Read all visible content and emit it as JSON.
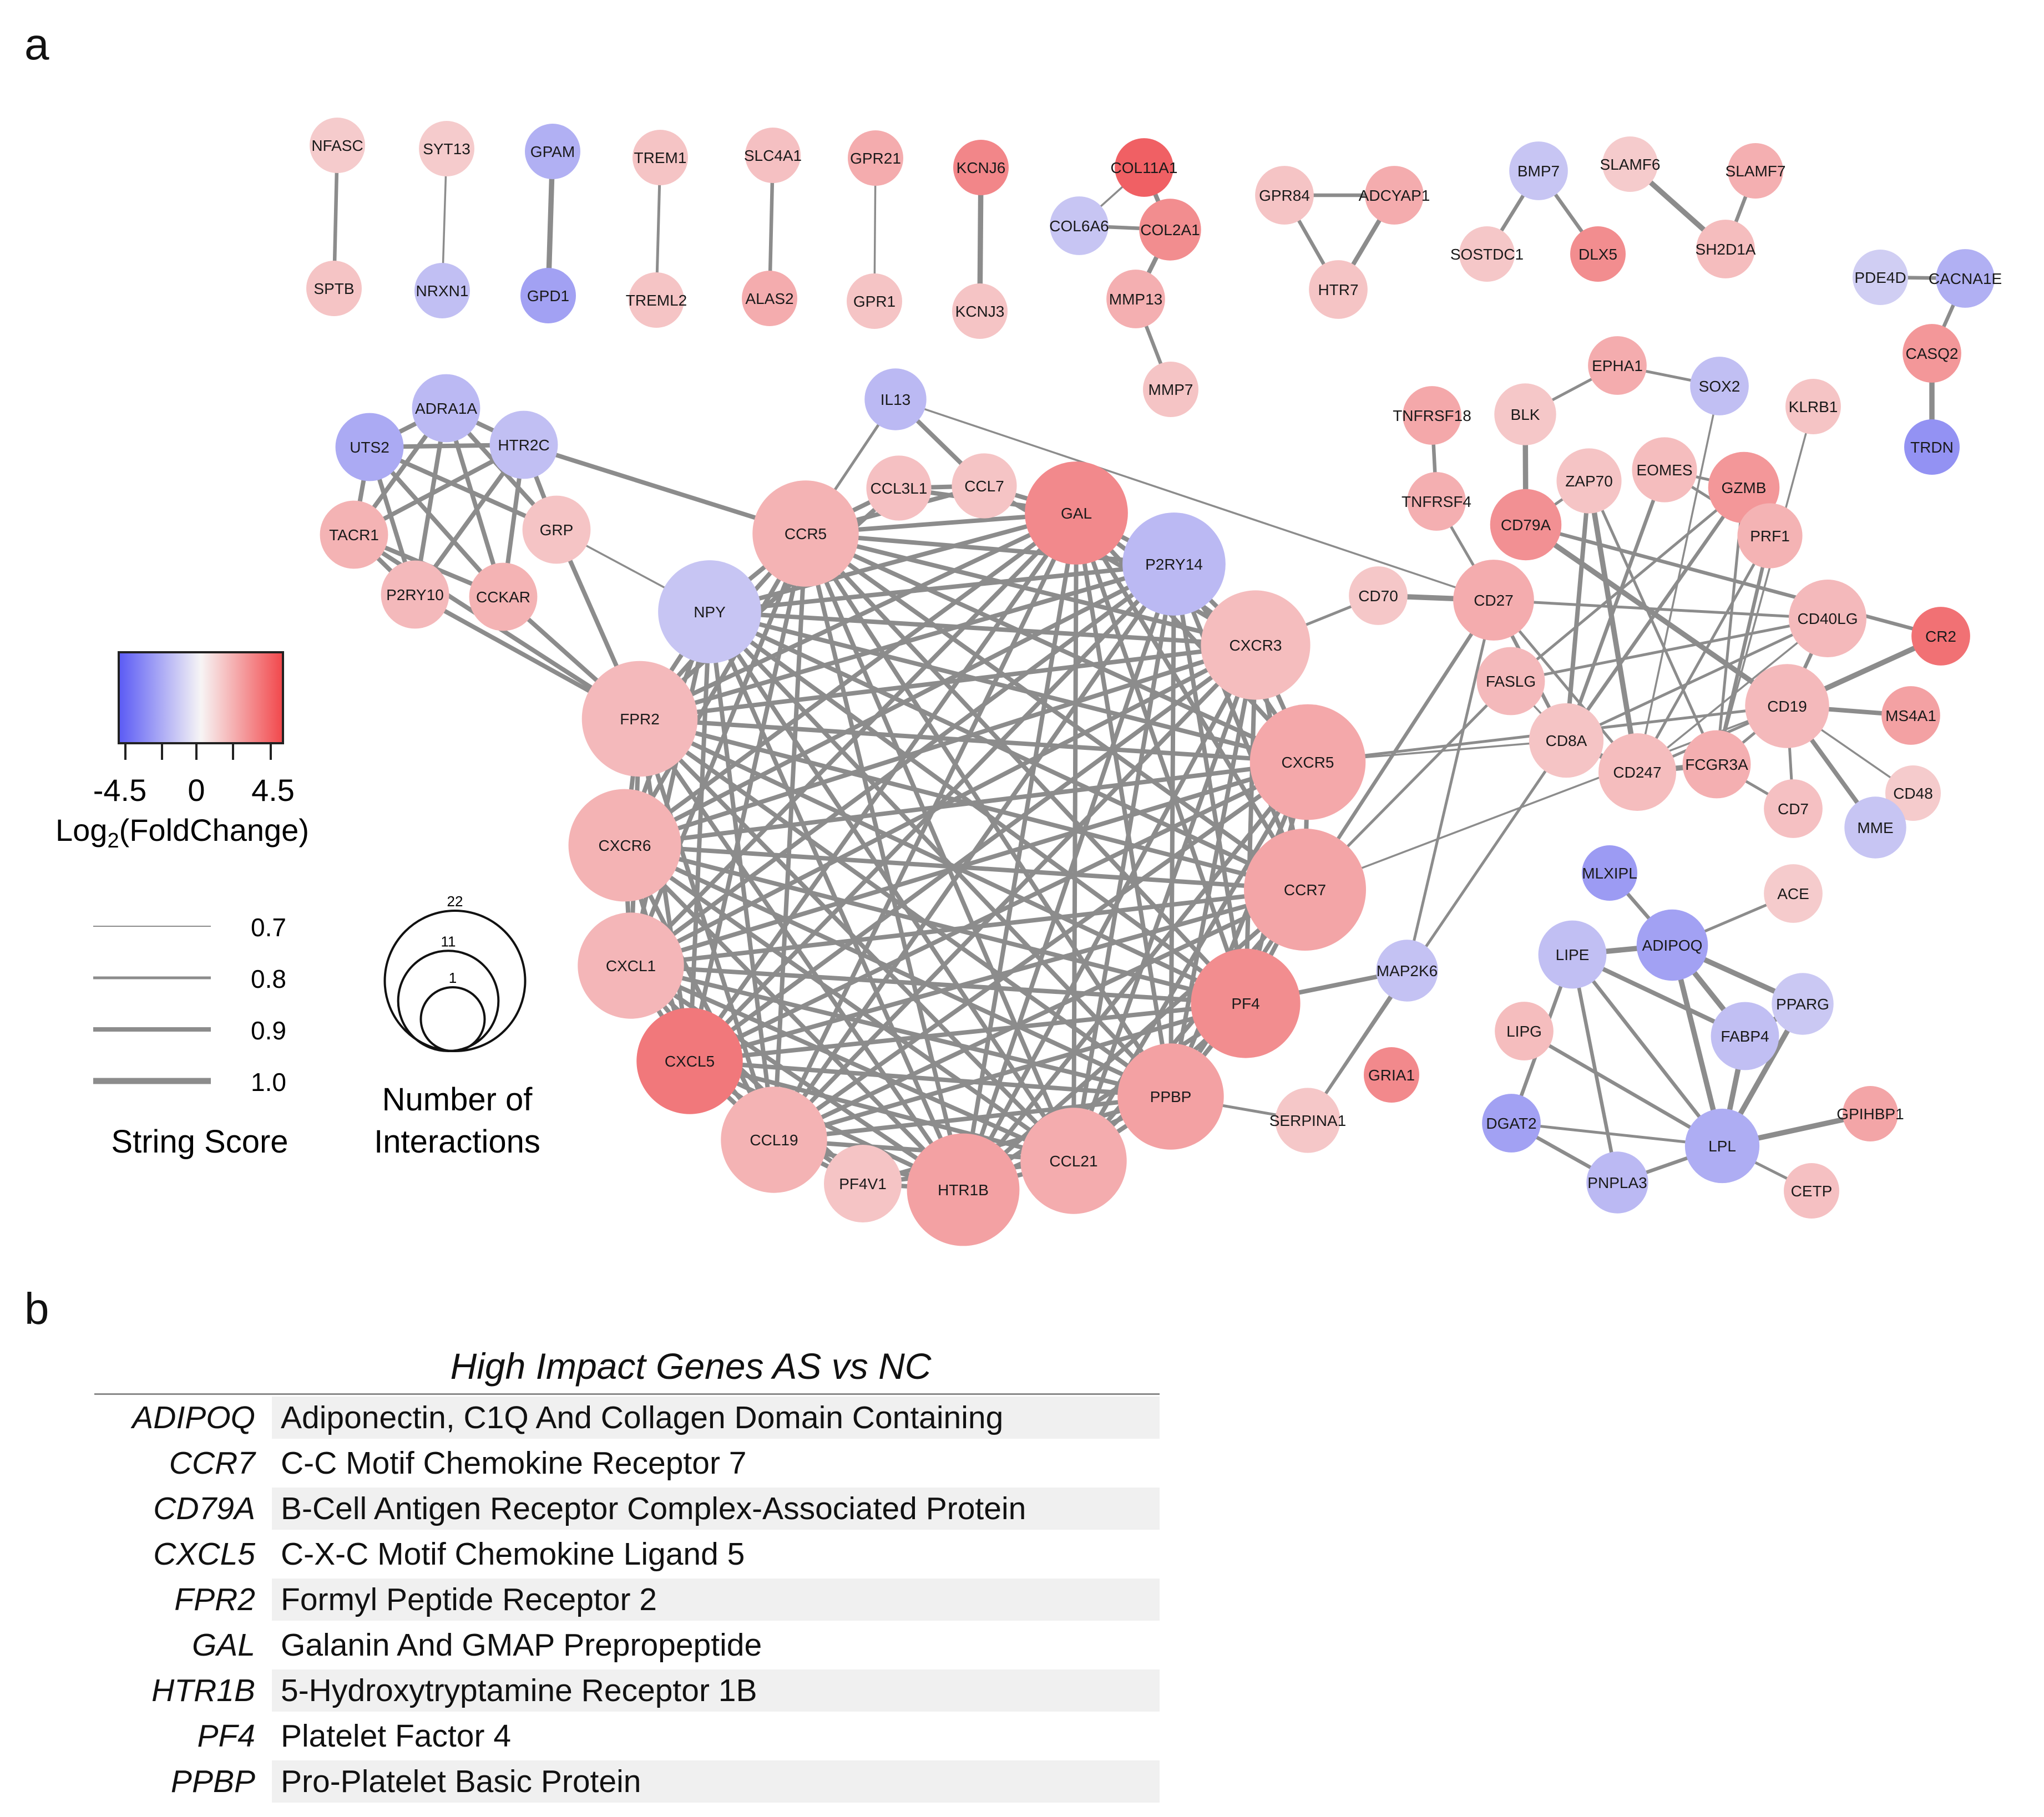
{
  "panel_labels": {
    "a": "a",
    "b": "b"
  },
  "colors": {
    "edge": "#8c8c8c",
    "low": "#6f6ff2",
    "mid": "#f7f4f4",
    "high": "#f0595d",
    "node_text": "#1a1a1a"
  },
  "legend": {
    "colorbar": {
      "min": "-4.5",
      "mid": "0",
      "max": "4.5",
      "title_main": "Log",
      "title_sub": "2",
      "title_rest": "(FoldChange)"
    },
    "string_score": {
      "title": "String Score",
      "items": [
        {
          "label": "0.7",
          "score": 0.7
        },
        {
          "label": "0.8",
          "score": 0.8
        },
        {
          "label": "0.9",
          "score": 0.9
        },
        {
          "label": "1.0",
          "score": 1.0
        }
      ]
    },
    "interactions": {
      "title_line1": "Number of",
      "title_line2": "Interactions",
      "items": [
        {
          "label": "22",
          "count": 22
        },
        {
          "label": "11",
          "count": 11
        },
        {
          "label": "1",
          "count": 1
        }
      ]
    }
  },
  "network": {
    "nodes": [
      {
        "id": "NFASC",
        "fc": 1.2,
        "deg": 1
      },
      {
        "id": "SPTB",
        "fc": 1.4,
        "deg": 1
      },
      {
        "id": "SYT13",
        "fc": 1.2,
        "deg": 1
      },
      {
        "id": "NRXN1",
        "fc": -1.8,
        "deg": 1
      },
      {
        "id": "GPAM",
        "fc": -2.3,
        "deg": 1
      },
      {
        "id": "GPD1",
        "fc": -2.8,
        "deg": 1
      },
      {
        "id": "TREM1",
        "fc": 1.4,
        "deg": 1
      },
      {
        "id": "TREML2",
        "fc": 1.4,
        "deg": 1
      },
      {
        "id": "SLC4A1",
        "fc": 1.5,
        "deg": 1
      },
      {
        "id": "ALAS2",
        "fc": 2.1,
        "deg": 1
      },
      {
        "id": "GPR21",
        "fc": 2.1,
        "deg": 1
      },
      {
        "id": "GPR1",
        "fc": 1.4,
        "deg": 1
      },
      {
        "id": "KCNJ6",
        "fc": 3.2,
        "deg": 1
      },
      {
        "id": "KCNJ3",
        "fc": 1.4,
        "deg": 1
      },
      {
        "id": "COL11A1",
        "fc": 4.3,
        "deg": 2
      },
      {
        "id": "COL6A6",
        "fc": -1.6,
        "deg": 2
      },
      {
        "id": "COL2A1",
        "fc": 3.0,
        "deg": 3
      },
      {
        "id": "MMP13",
        "fc": 2.0,
        "deg": 2
      },
      {
        "id": "MMP7",
        "fc": 1.4,
        "deg": 1
      },
      {
        "id": "GPR84",
        "fc": 1.4,
        "deg": 2
      },
      {
        "id": "ADCYAP1",
        "fc": 2.1,
        "deg": 2
      },
      {
        "id": "HTR7",
        "fc": 1.4,
        "deg": 2
      },
      {
        "id": "BMP7",
        "fc": -1.6,
        "deg": 2
      },
      {
        "id": "SOSTDC1",
        "fc": 1.3,
        "deg": 1
      },
      {
        "id": "DLX5",
        "fc": 3.0,
        "deg": 1
      },
      {
        "id": "SLAMF6",
        "fc": 1.2,
        "deg": 1
      },
      {
        "id": "SLAMF7",
        "fc": 2.0,
        "deg": 1
      },
      {
        "id": "SH2D1A",
        "fc": 1.6,
        "deg": 2
      },
      {
        "id": "PDE4D",
        "fc": -1.3,
        "deg": 1
      },
      {
        "id": "CACNA1E",
        "fc": -2.3,
        "deg": 2
      },
      {
        "id": "CASQ2",
        "fc": 2.7,
        "deg": 2
      },
      {
        "id": "TRDN",
        "fc": -3.3,
        "deg": 1
      },
      {
        "id": "UTS2",
        "fc": -2.5,
        "deg": 5
      },
      {
        "id": "ADRA1A",
        "fc": -2.0,
        "deg": 5
      },
      {
        "id": "HTR2C",
        "fc": -1.8,
        "deg": 5
      },
      {
        "id": "TACR1",
        "fc": 1.9,
        "deg": 5
      },
      {
        "id": "GRP",
        "fc": 1.4,
        "deg": 5
      },
      {
        "id": "P2RY10",
        "fc": 1.7,
        "deg": 5
      },
      {
        "id": "CCKAR",
        "fc": 1.9,
        "deg": 5
      },
      {
        "id": "IL13",
        "fc": -2.0,
        "deg": 3
      },
      {
        "id": "CCL3L1",
        "fc": 1.5,
        "deg": 4
      },
      {
        "id": "CCL7",
        "fc": 1.4,
        "deg": 4
      },
      {
        "id": "CCR5",
        "fc": 1.9,
        "deg": 17
      },
      {
        "id": "GAL",
        "fc": 3.1,
        "deg": 16
      },
      {
        "id": "P2RY14",
        "fc": -2.0,
        "deg": 16
      },
      {
        "id": "NPY",
        "fc": -1.6,
        "deg": 16
      },
      {
        "id": "CXCR3",
        "fc": 1.6,
        "deg": 18
      },
      {
        "id": "FPR2",
        "fc": 1.7,
        "deg": 20
      },
      {
        "id": "CXCR5",
        "fc": 2.2,
        "deg": 20
      },
      {
        "id": "CXCR6",
        "fc": 1.9,
        "deg": 19
      },
      {
        "id": "CCR7",
        "fc": 2.3,
        "deg": 22
      },
      {
        "id": "CXCL1",
        "fc": 1.8,
        "deg": 17
      },
      {
        "id": "PF4",
        "fc": 3.0,
        "deg": 18
      },
      {
        "id": "CXCL5",
        "fc": 3.6,
        "deg": 17
      },
      {
        "id": "PPBP",
        "fc": 2.4,
        "deg": 17
      },
      {
        "id": "CCL19",
        "fc": 1.9,
        "deg": 17
      },
      {
        "id": "PF4V1",
        "fc": 1.4,
        "deg": 8
      },
      {
        "id": "HTR1B",
        "fc": 2.4,
        "deg": 19
      },
      {
        "id": "CCL21",
        "fc": 2.1,
        "deg": 17
      },
      {
        "id": "MAP2K6",
        "fc": -1.7,
        "deg": 3
      },
      {
        "id": "SERPINA1",
        "fc": 1.3,
        "deg": 4
      },
      {
        "id": "GRIA1",
        "fc": 3.1,
        "deg": 1
      },
      {
        "id": "TNFRSF18",
        "fc": 2.2,
        "deg": 2
      },
      {
        "id": "BLK",
        "fc": 1.3,
        "deg": 3
      },
      {
        "id": "EPHA1",
        "fc": 2.1,
        "deg": 2
      },
      {
        "id": "SOX2",
        "fc": -1.8,
        "deg": 2
      },
      {
        "id": "KLRB1",
        "fc": 1.4,
        "deg": 1
      },
      {
        "id": "TNFRSF4",
        "fc": 2.0,
        "deg": 2
      },
      {
        "id": "ZAP70",
        "fc": 1.4,
        "deg": 4
      },
      {
        "id": "EOMES",
        "fc": 1.6,
        "deg": 4
      },
      {
        "id": "GZMB",
        "fc": 2.7,
        "deg": 6
      },
      {
        "id": "CD79A",
        "fc": 2.9,
        "deg": 6
      },
      {
        "id": "PRF1",
        "fc": 1.9,
        "deg": 4
      },
      {
        "id": "CD70",
        "fc": 1.3,
        "deg": 2
      },
      {
        "id": "CD27",
        "fc": 2.1,
        "deg": 9
      },
      {
        "id": "CD40LG",
        "fc": 1.7,
        "deg": 8
      },
      {
        "id": "CR2",
        "fc": 3.8,
        "deg": 2
      },
      {
        "id": "FASLG",
        "fc": 1.7,
        "deg": 5
      },
      {
        "id": "CD19",
        "fc": 1.7,
        "deg": 10
      },
      {
        "id": "MS4A1",
        "fc": 2.4,
        "deg": 2
      },
      {
        "id": "CD8A",
        "fc": 1.4,
        "deg": 7
      },
      {
        "id": "CD247",
        "fc": 1.6,
        "deg": 8
      },
      {
        "id": "FCGR3A",
        "fc": 2.0,
        "deg": 5
      },
      {
        "id": "CD48",
        "fc": 1.2,
        "deg": 1
      },
      {
        "id": "CD7",
        "fc": 1.5,
        "deg": 2
      },
      {
        "id": "MME",
        "fc": -1.6,
        "deg": 3
      },
      {
        "id": "ACE",
        "fc": 1.2,
        "deg": 2
      },
      {
        "id": "MLXIPL",
        "fc": -3.0,
        "deg": 1
      },
      {
        "id": "ADIPOQ",
        "fc": -2.8,
        "deg": 6
      },
      {
        "id": "LIPE",
        "fc": -1.8,
        "deg": 5
      },
      {
        "id": "PPARG",
        "fc": -1.5,
        "deg": 3
      },
      {
        "id": "FABP4",
        "fc": -1.8,
        "deg": 5
      },
      {
        "id": "LIPG",
        "fc": 1.6,
        "deg": 2
      },
      {
        "id": "GPIHBP1",
        "fc": 2.3,
        "deg": 1
      },
      {
        "id": "DGAT2",
        "fc": -2.8,
        "deg": 2
      },
      {
        "id": "LPL",
        "fc": -2.4,
        "deg": 7
      },
      {
        "id": "PNPLA3",
        "fc": -2.0,
        "deg": 3
      },
      {
        "id": "CETP",
        "fc": 1.5,
        "deg": 1
      }
    ],
    "edges": [
      [
        "NFASC",
        "SPTB",
        0.85
      ],
      [
        "SYT13",
        "NRXN1",
        0.75
      ],
      [
        "GPAM",
        "GPD1",
        0.95
      ],
      [
        "TREM1",
        "TREML2",
        0.8
      ],
      [
        "SLC4A1",
        "ALAS2",
        0.85
      ],
      [
        "GPR21",
        "GPR1",
        0.75
      ],
      [
        "KCNJ6",
        "KCNJ3",
        0.95
      ],
      [
        "COL11A1",
        "COL2A1",
        0.9
      ],
      [
        "COL6A6",
        "COL2A1",
        0.85
      ],
      [
        "COL6A6",
        "COL11A1",
        0.75
      ],
      [
        "COL2A1",
        "MMP13",
        0.9
      ],
      [
        "MMP13",
        "MMP7",
        0.85
      ],
      [
        "GPR84",
        "ADCYAP1",
        0.85
      ],
      [
        "GPR84",
        "HTR7",
        0.85
      ],
      [
        "ADCYAP1",
        "HTR7",
        0.9
      ],
      [
        "BMP7",
        "SOSTDC1",
        0.85
      ],
      [
        "BMP7",
        "DLX5",
        0.85
      ],
      [
        "SLAMF6",
        "SH2D1A",
        0.95
      ],
      [
        "SLAMF7",
        "SH2D1A",
        0.85
      ],
      [
        "PDE4D",
        "CACNA1E",
        0.85
      ],
      [
        "CACNA1E",
        "CASQ2",
        0.85
      ],
      [
        "CASQ2",
        "TRDN",
        0.95
      ],
      [
        "UTS2",
        "ADRA1A",
        0.9
      ],
      [
        "UTS2",
        "HTR2C",
        0.9
      ],
      [
        "UTS2",
        "TACR1",
        0.9
      ],
      [
        "UTS2",
        "GRP",
        0.9
      ],
      [
        "UTS2",
        "P2RY10",
        0.9
      ],
      [
        "UTS2",
        "CCKAR",
        0.9
      ],
      [
        "ADRA1A",
        "HTR2C",
        0.9
      ],
      [
        "ADRA1A",
        "TACR1",
        0.9
      ],
      [
        "ADRA1A",
        "P2RY10",
        0.9
      ],
      [
        "ADRA1A",
        "CCKAR",
        0.9
      ],
      [
        "ADRA1A",
        "GRP",
        0.9
      ],
      [
        "HTR2C",
        "TACR1",
        0.9
      ],
      [
        "HTR2C",
        "P2RY10",
        0.9
      ],
      [
        "HTR2C",
        "CCKAR",
        0.9
      ],
      [
        "HTR2C",
        "GRP",
        0.9
      ],
      [
        "HTR2C",
        "CCR5",
        0.9
      ],
      [
        "TACR1",
        "P2RY10",
        0.9
      ],
      [
        "TACR1",
        "CCKAR",
        0.9
      ],
      [
        "TACR1",
        "FPR2",
        0.9
      ],
      [
        "P2RY10",
        "FPR2",
        0.9
      ],
      [
        "CCKAR",
        "FPR2",
        0.9
      ],
      [
        "GRP",
        "FPR2",
        0.9
      ],
      [
        "GRP",
        "NPY",
        0.75
      ],
      [
        "IL13",
        "CCR5",
        0.8
      ],
      [
        "IL13",
        "CD27",
        0.75
      ],
      [
        "CCR7",
        "CD27",
        0.85
      ],
      [
        "CCR7",
        "FASLG",
        0.8
      ],
      [
        "CXCR3",
        "CD70",
        0.8
      ],
      [
        "CXCR5",
        "CD19",
        0.8
      ],
      [
        "CXCR5",
        "CD8A",
        0.75
      ],
      [
        "CCR7",
        "CD19",
        0.75
      ],
      [
        "PF4",
        "MAP2K6",
        0.9
      ],
      [
        "MAP2K6",
        "SERPINA1",
        0.8
      ],
      [
        "MAP2K6",
        "CD27",
        0.8
      ],
      [
        "SERPINA1",
        "CD8A",
        0.8
      ],
      [
        "PPBP",
        "SERPINA1",
        0.8
      ],
      [
        "TNFRSF18",
        "TNFRSF4",
        0.85
      ],
      [
        "BLK",
        "CD79A",
        0.95
      ],
      [
        "BLK",
        "EPHA1",
        0.8
      ],
      [
        "EPHA1",
        "SOX2",
        0.8
      ],
      [
        "CD70",
        "CD27",
        0.95
      ],
      [
        "CD27",
        "TNFRSF4",
        0.8
      ],
      [
        "CD27",
        "CD40LG",
        0.8
      ],
      [
        "CD27",
        "CD247",
        0.8
      ],
      [
        "CD27",
        "CD8A",
        0.85
      ],
      [
        "CD79A",
        "CD19",
        0.95
      ],
      [
        "CD79A",
        "CR2",
        0.85
      ],
      [
        "CD79A",
        "ZAP70",
        0.8
      ],
      [
        "ZAP70",
        "CD247",
        0.95
      ],
      [
        "ZAP70",
        "CD8A",
        0.9
      ],
      [
        "ZAP70",
        "FCGR3A",
        0.8
      ],
      [
        "EOMES",
        "GZMB",
        0.8
      ],
      [
        "EOMES",
        "CD8A",
        0.85
      ],
      [
        "EOMES",
        "PRF1",
        0.8
      ],
      [
        "GZMB",
        "PRF1",
        0.95
      ],
      [
        "GZMB",
        "CD8A",
        0.85
      ],
      [
        "GZMB",
        "FASLG",
        0.8
      ],
      [
        "GZMB",
        "FCGR3A",
        0.8
      ],
      [
        "PRF1",
        "CD247",
        0.8
      ],
      [
        "PRF1",
        "FCGR3A",
        0.85
      ],
      [
        "FASLG",
        "CD40LG",
        0.8
      ],
      [
        "FASLG",
        "CD8A",
        0.75
      ],
      [
        "CD8A",
        "CD247",
        0.95
      ],
      [
        "CD8A",
        "CD40LG",
        0.8
      ],
      [
        "CD40LG",
        "CD19",
        0.85
      ],
      [
        "CD40LG",
        "CD247",
        0.75
      ],
      [
        "CR2",
        "CD19",
        0.95
      ],
      [
        "CD19",
        "MS4A1",
        0.9
      ],
      [
        "CD19",
        "CD48",
        0.75
      ],
      [
        "CD19",
        "CD7",
        0.8
      ],
      [
        "CD19",
        "MME",
        0.9
      ],
      [
        "CD19",
        "CD247",
        0.8
      ],
      [
        "CD19",
        "FCGR3A",
        0.8
      ],
      [
        "CD247",
        "FCGR3A",
        0.95
      ],
      [
        "CD7",
        "FCGR3A",
        0.8
      ],
      [
        "KLRB1",
        "FCGR3A",
        0.75
      ],
      [
        "SOX2",
        "CD247",
        0.75
      ],
      [
        "MLXIPL",
        "ADIPOQ",
        0.85
      ],
      [
        "ACE",
        "ADIPOQ",
        0.8
      ],
      [
        "ADIPOQ",
        "LIPE",
        0.95
      ],
      [
        "ADIPOQ",
        "PPARG",
        0.95
      ],
      [
        "ADIPOQ",
        "FABP4",
        0.95
      ],
      [
        "ADIPOQ",
        "LPL",
        0.95
      ],
      [
        "LIPE",
        "FABP4",
        0.9
      ],
      [
        "LIPE",
        "LPL",
        0.85
      ],
      [
        "LIPE",
        "DGAT2",
        0.85
      ],
      [
        "LIPE",
        "PNPLA3",
        0.85
      ],
      [
        "FABP4",
        "PPARG",
        0.95
      ],
      [
        "FABP4",
        "LPL",
        0.95
      ],
      [
        "PPARG",
        "LPL",
        0.95
      ],
      [
        "LIPG",
        "LPL",
        0.85
      ],
      [
        "LPL",
        "GPIHBP1",
        0.95
      ],
      [
        "LPL",
        "CETP",
        0.8
      ],
      [
        "LPL",
        "PNPLA3",
        0.85
      ],
      [
        "LPL",
        "DGAT2",
        0.8
      ],
      [
        "PNPLA3",
        "DGAT2",
        0.85
      ]
    ]
  },
  "table_b": {
    "title": "High Impact Genes AS vs NC",
    "rows": [
      {
        "symbol": "ADIPOQ",
        "description": "Adiponectin, C1Q And Collagen Domain Containing"
      },
      {
        "symbol": "CCR7",
        "description": "C-C Motif Chemokine Receptor 7"
      },
      {
        "symbol": "CD79A",
        "description": "B-Cell Antigen Receptor Complex-Associated Protein"
      },
      {
        "symbol": "CXCL5",
        "description": "C-X-C Motif Chemokine Ligand 5"
      },
      {
        "symbol": "FPR2",
        "description": "Formyl Peptide Receptor 2"
      },
      {
        "symbol": "GAL",
        "description": "Galanin And GMAP Prepropeptide"
      },
      {
        "symbol": "HTR1B",
        "description": "5-Hydroxytryptamine Receptor 1B"
      },
      {
        "symbol": "PF4",
        "description": "Platelet Factor 4"
      },
      {
        "symbol": "PPBP",
        "description": "Pro-Platelet Basic Protein"
      }
    ]
  }
}
